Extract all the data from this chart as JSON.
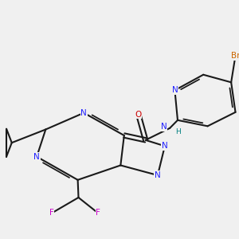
{
  "bg": "#f0f0f0",
  "bond": "#1a1a1a",
  "N_col": "#2020ff",
  "O_col": "#cc0000",
  "F_col": "#cc00cc",
  "Br_col": "#cc6600",
  "H_col": "#008080",
  "lw": 1.5
}
